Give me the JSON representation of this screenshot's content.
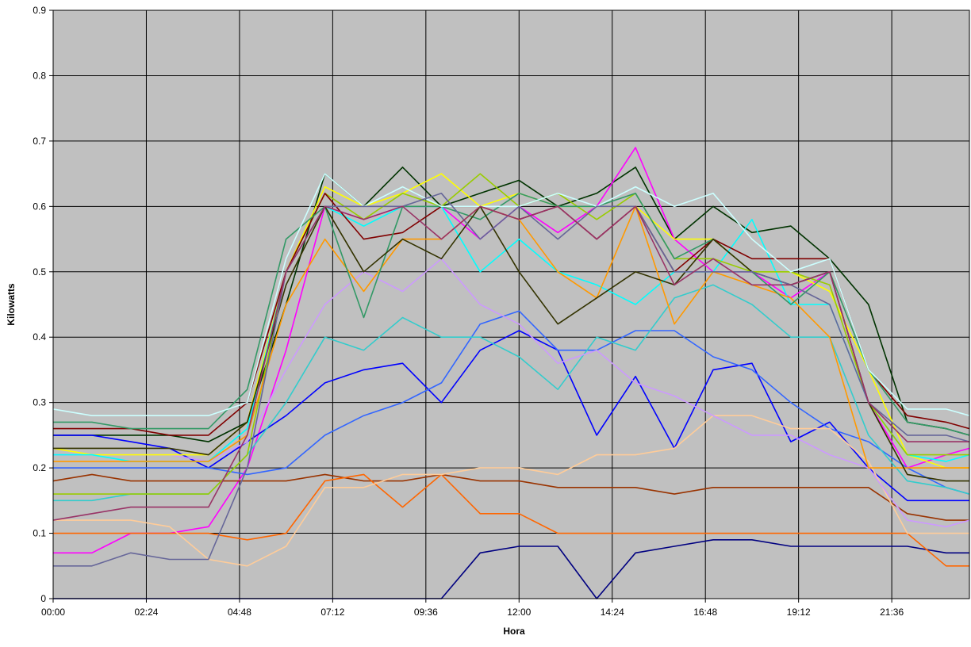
{
  "chart_data": {
    "type": "line",
    "x_label": "Hora",
    "y_label": "Kilowatts",
    "x": [
      0,
      1,
      2,
      3,
      4,
      5,
      6,
      7,
      8,
      9,
      10,
      11,
      12,
      13,
      14,
      15,
      16,
      17,
      18,
      19,
      20,
      21,
      22,
      23,
      23.6
    ],
    "xlim": [
      0,
      23.6
    ],
    "xticks": [
      {
        "value": 0,
        "label": "00:00"
      },
      {
        "value": 2.4,
        "label": "02:24"
      },
      {
        "value": 4.8,
        "label": "04:48"
      },
      {
        "value": 7.2,
        "label": "07:12"
      },
      {
        "value": 9.6,
        "label": "09:36"
      },
      {
        "value": 12,
        "label": "12:00"
      },
      {
        "value": 14.4,
        "label": "14:24"
      },
      {
        "value": 16.8,
        "label": "16:48"
      },
      {
        "value": 19.2,
        "label": "19:12"
      },
      {
        "value": 21.6,
        "label": "21:36"
      }
    ],
    "ylim": [
      0,
      0.9
    ],
    "yticks": [
      0,
      0.1,
      0.2,
      0.3,
      0.4,
      0.5,
      0.6,
      0.7,
      0.8,
      0.9
    ],
    "grid": true,
    "background": "#c0c0c0",
    "series": [
      {
        "color": "#003300",
        "values": [
          0.25,
          0.25,
          0.25,
          0.25,
          0.24,
          0.27,
          0.45,
          0.65,
          0.6,
          0.66,
          0.6,
          0.62,
          0.64,
          0.6,
          0.62,
          0.66,
          0.55,
          0.6,
          0.56,
          0.57,
          0.52,
          0.45,
          0.27,
          0.26,
          0.25
        ]
      },
      {
        "color": "#ff00ff",
        "values": [
          0.07,
          0.07,
          0.1,
          0.1,
          0.11,
          0.2,
          0.38,
          0.6,
          0.58,
          0.6,
          0.6,
          0.55,
          0.6,
          0.56,
          0.6,
          0.69,
          0.55,
          0.5,
          0.5,
          0.46,
          0.5,
          0.3,
          0.2,
          0.22,
          0.23
        ]
      },
      {
        "color": "#000080",
        "values": [
          0,
          0,
          0,
          0,
          0,
          0,
          0,
          0,
          0,
          0,
          0,
          0.07,
          0.08,
          0.08,
          0,
          0.07,
          0.08,
          0.09,
          0.09,
          0.08,
          0.08,
          0.08,
          0.08,
          0.07,
          0.07
        ]
      },
      {
        "color": "#0000ff",
        "values": [
          0.25,
          0.25,
          0.24,
          0.23,
          0.2,
          0.24,
          0.28,
          0.33,
          0.35,
          0.36,
          0.3,
          0.38,
          0.41,
          0.38,
          0.25,
          0.34,
          0.23,
          0.35,
          0.36,
          0.24,
          0.27,
          0.2,
          0.15,
          0.15,
          0.15
        ]
      },
      {
        "color": "#3366ff",
        "values": [
          0.2,
          0.2,
          0.2,
          0.2,
          0.2,
          0.19,
          0.2,
          0.25,
          0.28,
          0.3,
          0.33,
          0.42,
          0.44,
          0.38,
          0.38,
          0.41,
          0.41,
          0.37,
          0.35,
          0.3,
          0.26,
          0.24,
          0.2,
          0.17,
          0.16
        ]
      },
      {
        "color": "#993300",
        "values": [
          0.18,
          0.19,
          0.18,
          0.18,
          0.18,
          0.18,
          0.18,
          0.19,
          0.18,
          0.18,
          0.19,
          0.18,
          0.18,
          0.17,
          0.17,
          0.17,
          0.16,
          0.17,
          0.17,
          0.17,
          0.17,
          0.17,
          0.13,
          0.12,
          0.12
        ]
      },
      {
        "color": "#ff6600",
        "values": [
          0.1,
          0.1,
          0.1,
          0.1,
          0.1,
          0.09,
          0.1,
          0.18,
          0.19,
          0.14,
          0.19,
          0.13,
          0.13,
          0.1,
          0.1,
          0.1,
          0.1,
          0.1,
          0.1,
          0.1,
          0.1,
          0.1,
          0.1,
          0.05,
          0.05
        ]
      },
      {
        "color": "#ffcc99",
        "values": [
          0.12,
          0.12,
          0.12,
          0.11,
          0.06,
          0.05,
          0.08,
          0.17,
          0.17,
          0.19,
          0.19,
          0.2,
          0.2,
          0.19,
          0.22,
          0.22,
          0.23,
          0.28,
          0.28,
          0.26,
          0.26,
          0.21,
          0.1,
          0.1,
          0.1
        ]
      },
      {
        "color": "#33cccc",
        "values": [
          0.15,
          0.15,
          0.16,
          0.16,
          0.16,
          0.22,
          0.3,
          0.4,
          0.38,
          0.43,
          0.4,
          0.4,
          0.37,
          0.32,
          0.4,
          0.38,
          0.46,
          0.48,
          0.45,
          0.4,
          0.4,
          0.25,
          0.18,
          0.17,
          0.16
        ]
      },
      {
        "color": "#cc99ff",
        "values": [
          0.22,
          0.22,
          0.22,
          0.22,
          0.21,
          0.24,
          0.35,
          0.45,
          0.5,
          0.47,
          0.52,
          0.45,
          0.42,
          0.36,
          0.38,
          0.33,
          0.31,
          0.28,
          0.25,
          0.25,
          0.22,
          0.2,
          0.12,
          0.11,
          0.12
        ]
      },
      {
        "color": "#ffff00",
        "values": [
          0.23,
          0.22,
          0.22,
          0.22,
          0.22,
          0.27,
          0.5,
          0.63,
          0.6,
          0.62,
          0.65,
          0.6,
          0.62,
          0.6,
          0.6,
          0.6,
          0.55,
          0.55,
          0.5,
          0.5,
          0.47,
          0.35,
          0.22,
          0.2,
          0.2
        ]
      },
      {
        "color": "#00ffff",
        "values": [
          0.22,
          0.22,
          0.21,
          0.21,
          0.21,
          0.26,
          0.5,
          0.6,
          0.57,
          0.6,
          0.6,
          0.5,
          0.55,
          0.5,
          0.48,
          0.45,
          0.5,
          0.5,
          0.58,
          0.45,
          0.45,
          0.3,
          0.22,
          0.21,
          0.22
        ]
      },
      {
        "color": "#99cc00",
        "values": [
          0.16,
          0.16,
          0.16,
          0.16,
          0.16,
          0.22,
          0.5,
          0.62,
          0.58,
          0.62,
          0.6,
          0.65,
          0.6,
          0.62,
          0.58,
          0.62,
          0.52,
          0.52,
          0.5,
          0.5,
          0.48,
          0.3,
          0.22,
          0.22,
          0.22
        ]
      },
      {
        "color": "#800000",
        "values": [
          0.26,
          0.26,
          0.26,
          0.25,
          0.25,
          0.3,
          0.5,
          0.62,
          0.55,
          0.56,
          0.6,
          0.6,
          0.58,
          0.6,
          0.55,
          0.6,
          0.5,
          0.55,
          0.52,
          0.52,
          0.52,
          0.35,
          0.28,
          0.27,
          0.26
        ]
      },
      {
        "color": "#ff9900",
        "values": [
          0.21,
          0.21,
          0.21,
          0.21,
          0.21,
          0.25,
          0.45,
          0.55,
          0.47,
          0.55,
          0.55,
          0.6,
          0.58,
          0.5,
          0.46,
          0.6,
          0.42,
          0.5,
          0.48,
          0.46,
          0.4,
          0.2,
          0.2,
          0.2,
          0.2
        ]
      },
      {
        "color": "#339966",
        "values": [
          0.27,
          0.27,
          0.26,
          0.26,
          0.26,
          0.32,
          0.55,
          0.6,
          0.43,
          0.6,
          0.6,
          0.58,
          0.62,
          0.6,
          0.6,
          0.62,
          0.52,
          0.55,
          0.5,
          0.45,
          0.5,
          0.35,
          0.27,
          0.26,
          0.25
        ]
      },
      {
        "color": "#333300",
        "values": [
          0.23,
          0.23,
          0.23,
          0.23,
          0.22,
          0.27,
          0.48,
          0.6,
          0.5,
          0.55,
          0.52,
          0.6,
          0.5,
          0.42,
          0.46,
          0.5,
          0.48,
          0.55,
          0.5,
          0.48,
          0.5,
          0.3,
          0.19,
          0.18,
          0.18
        ]
      },
      {
        "color": "#ccffff",
        "values": [
          0.29,
          0.28,
          0.28,
          0.28,
          0.28,
          0.3,
          0.52,
          0.65,
          0.6,
          0.63,
          0.6,
          0.6,
          0.6,
          0.62,
          0.6,
          0.63,
          0.6,
          0.62,
          0.55,
          0.5,
          0.52,
          0.35,
          0.29,
          0.29,
          0.28
        ]
      },
      {
        "color": "#666699",
        "values": [
          0.05,
          0.05,
          0.07,
          0.06,
          0.06,
          0.2,
          0.5,
          0.6,
          0.6,
          0.6,
          0.62,
          0.55,
          0.6,
          0.55,
          0.6,
          0.6,
          0.5,
          0.5,
          0.5,
          0.48,
          0.45,
          0.3,
          0.25,
          0.25,
          0.24
        ]
      },
      {
        "color": "#993366",
        "values": [
          0.12,
          0.13,
          0.14,
          0.14,
          0.14,
          0.25,
          0.5,
          0.6,
          0.58,
          0.6,
          0.55,
          0.6,
          0.58,
          0.6,
          0.55,
          0.6,
          0.48,
          0.52,
          0.48,
          0.48,
          0.5,
          0.3,
          0.24,
          0.24,
          0.24
        ]
      }
    ]
  }
}
